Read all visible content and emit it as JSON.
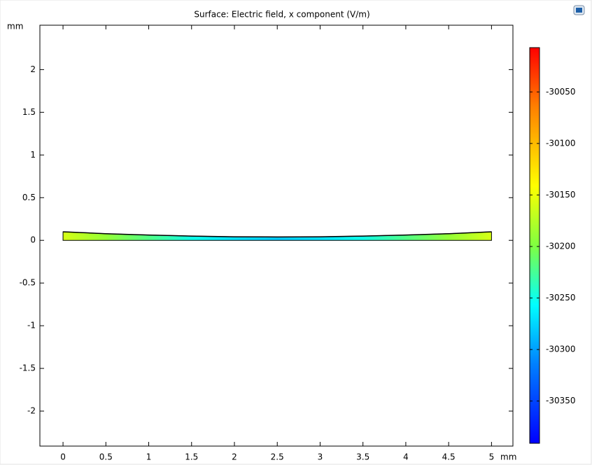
{
  "chart_data": {
    "type": "surface",
    "title": "Surface: Electric field, x component (V/m)",
    "x_label": "mm",
    "y_label": "mm",
    "xlim": [
      -0.27,
      5.25
    ],
    "ylim": [
      -2.41,
      2.52
    ],
    "xticks": [
      0,
      0.5,
      1,
      1.5,
      2,
      2.5,
      3,
      3.5,
      4,
      4.5,
      5
    ],
    "yticks": [
      -2,
      -1.5,
      -1,
      -0.5,
      0,
      0.5,
      1,
      1.5,
      2
    ],
    "x": [
      0,
      0.5,
      1,
      1.5,
      2,
      2.5,
      3,
      3.5,
      4,
      4.5,
      5
    ],
    "top": [
      0.1,
      0.078,
      0.062,
      0.05,
      0.042,
      0.04,
      0.042,
      0.05,
      0.062,
      0.078,
      0.1
    ],
    "field": [
      -30160,
      -30190,
      -30220,
      -30250,
      -30270,
      -30280,
      -30270,
      -30250,
      -30220,
      -30190,
      -30160
    ],
    "clim": [
      -30391,
      -30007
    ],
    "cticks": [
      -30050,
      -30100,
      -30150,
      -30200,
      -30250,
      -30300,
      -30350
    ]
  }
}
